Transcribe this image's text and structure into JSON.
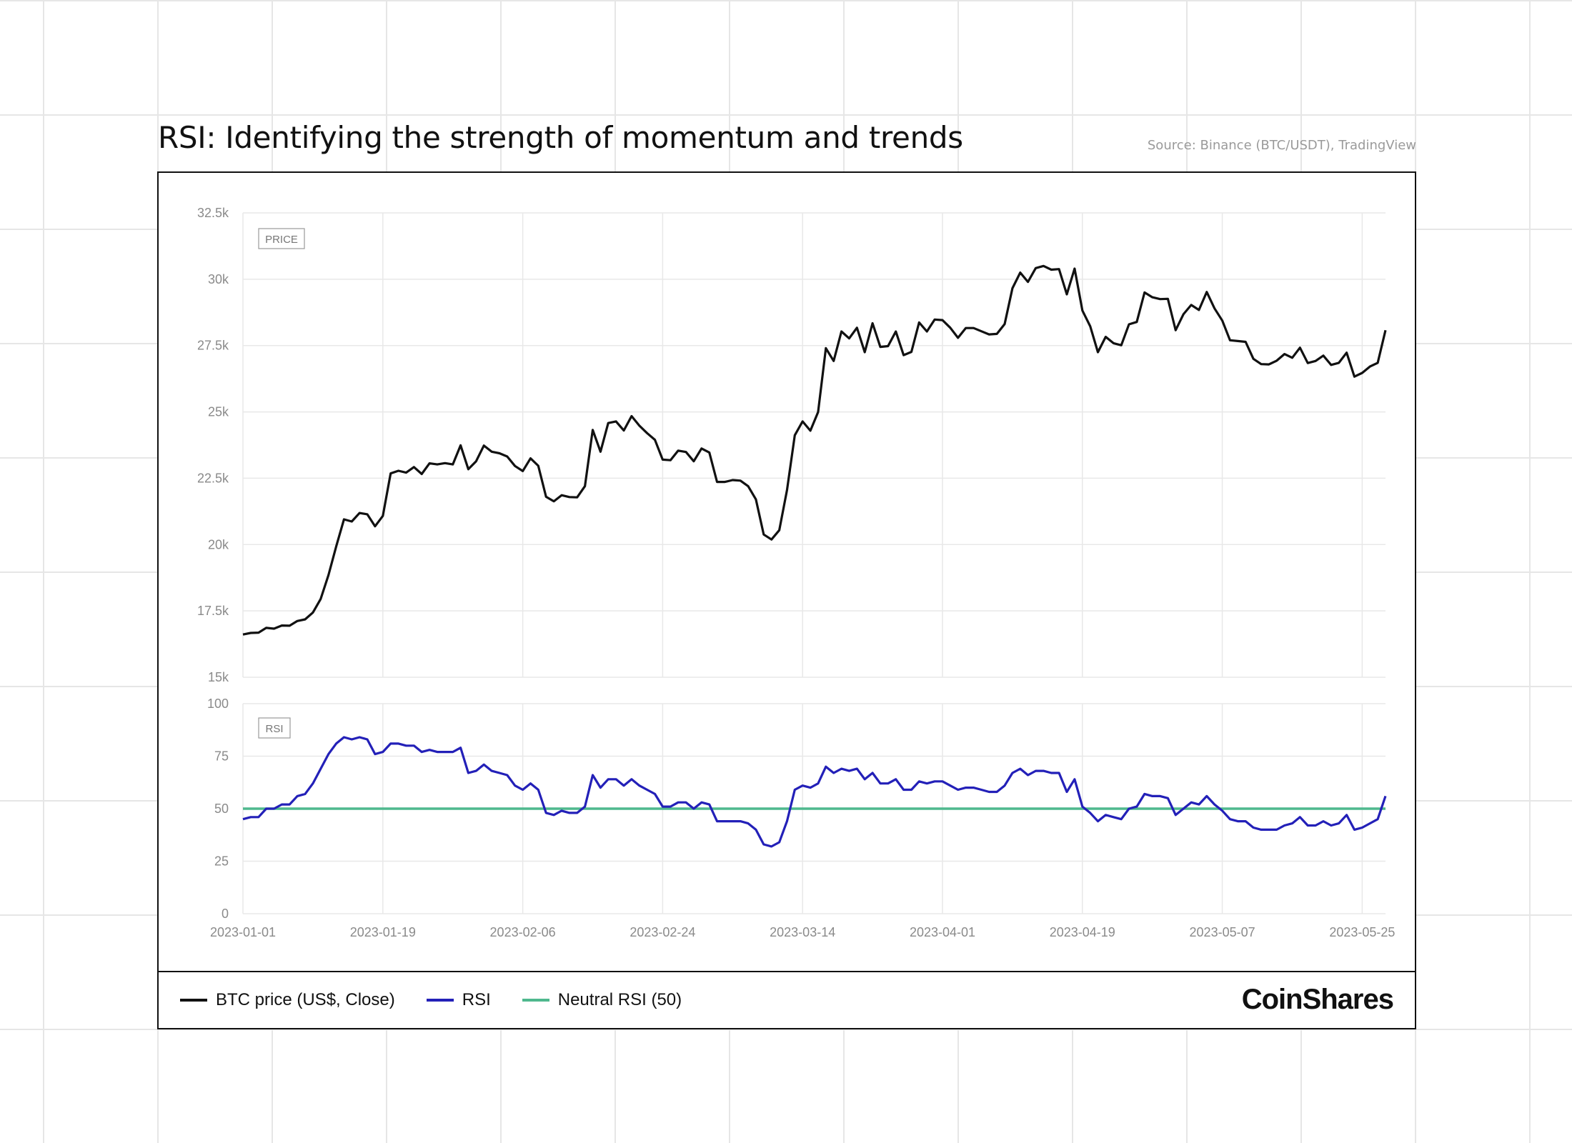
{
  "header": {
    "title": "RSI: Identifying the strength of momentum and trends",
    "source": "Source: Binance (BTC/USDT), TradingView"
  },
  "legend": {
    "items": [
      {
        "label": "BTC price (US$, Close)",
        "color": "#111111"
      },
      {
        "label": "RSI",
        "color": "#2320b8"
      },
      {
        "label": "Neutral RSI (50)",
        "color": "#4fb88e"
      }
    ]
  },
  "brand": {
    "logo": "CoinShares"
  },
  "chart_data": [
    {
      "type": "line",
      "panel_tag": "PRICE",
      "x_tick_labels": [
        "2023-01-01",
        "2023-01-19",
        "2023-02-06",
        "2023-02-24",
        "2023-03-14",
        "2023-04-01",
        "2023-04-19",
        "2023-05-07",
        "2023-05-25"
      ],
      "y_tick_labels": [
        "15k",
        "17.5k",
        "20k",
        "22.5k",
        "25k",
        "27.5k",
        "30k",
        "32.5k"
      ],
      "ylim": [
        15000,
        32500
      ],
      "grid": true,
      "series": [
        {
          "name": "BTC price (US$, Close)",
          "color": "#111111",
          "start_date": "2023-01-01",
          "values": [
            16610,
            16670,
            16680,
            16860,
            16830,
            16950,
            16940,
            17120,
            17180,
            17440,
            17950,
            18850,
            19930,
            20950,
            20870,
            21190,
            21140,
            20690,
            21080,
            22680,
            22780,
            22710,
            22920,
            22660,
            23060,
            23020,
            23070,
            23020,
            23740,
            22840,
            23140,
            23730,
            23500,
            23440,
            23320,
            22960,
            22770,
            23250,
            22970,
            21800,
            21630,
            21860,
            21790,
            21780,
            22200,
            24320,
            23500,
            24580,
            24640,
            24300,
            24840,
            24480,
            24200,
            23950,
            23200,
            23180,
            23540,
            23490,
            23140,
            23620,
            23470,
            22360,
            22360,
            22430,
            22410,
            22200,
            21700,
            20380,
            20190,
            20540,
            22050,
            24120,
            24640,
            24290,
            24990,
            27400,
            26920,
            28030,
            27770,
            28170,
            27250,
            28340,
            27450,
            27480,
            28030,
            27140,
            27260,
            28370,
            28030,
            28480,
            28460,
            28170,
            27790,
            28160,
            28160,
            28040,
            27920,
            27940,
            28310,
            29660,
            30250,
            29900,
            30420,
            30500,
            30360,
            30380,
            29430,
            30400,
            28820,
            28230,
            27250,
            27830,
            27590,
            27510,
            28300,
            28390,
            29500,
            29320,
            29250,
            29260,
            28080,
            28680,
            29030,
            28840,
            29520,
            28900,
            28440,
            27700,
            27670,
            27640,
            27000,
            26800,
            26790,
            26930,
            27180,
            27040,
            27420,
            26840,
            26920,
            27120,
            26770,
            26850,
            27230,
            26330,
            26470,
            26710,
            26850,
            28080
          ]
        }
      ]
    },
    {
      "type": "line",
      "panel_tag": "RSI",
      "x_tick_labels": [
        "2023-01-01",
        "2023-01-19",
        "2023-02-06",
        "2023-02-24",
        "2023-03-14",
        "2023-04-01",
        "2023-04-19",
        "2023-05-07",
        "2023-05-25"
      ],
      "y_tick_labels": [
        "0",
        "25",
        "50",
        "75",
        "100"
      ],
      "ylim": [
        0,
        100
      ],
      "grid": true,
      "series": [
        {
          "name": "RSI",
          "color": "#2320b8",
          "start_date": "2023-01-01",
          "values": [
            45,
            46,
            46,
            50,
            50,
            52,
            52,
            56,
            57,
            62,
            69,
            76,
            81,
            84,
            83,
            84,
            83,
            76,
            77,
            81,
            81,
            80,
            80,
            77,
            78,
            77,
            77,
            77,
            79,
            67,
            68,
            71,
            68,
            67,
            66,
            61,
            59,
            62,
            59,
            48,
            47,
            49,
            48,
            48,
            51,
            66,
            60,
            64,
            64,
            61,
            64,
            61,
            59,
            57,
            51,
            51,
            53,
            53,
            50,
            53,
            52,
            44,
            44,
            44,
            44,
            43,
            40,
            33,
            32,
            34,
            44,
            59,
            61,
            60,
            62,
            70,
            67,
            69,
            68,
            69,
            64,
            67,
            62,
            62,
            64,
            59,
            59,
            63,
            62,
            63,
            63,
            61,
            59,
            60,
            60,
            59,
            58,
            58,
            61,
            67,
            69,
            66,
            68,
            68,
            67,
            67,
            58,
            64,
            51,
            48,
            44,
            47,
            46,
            45,
            50,
            51,
            57,
            56,
            56,
            55,
            47,
            50,
            53,
            52,
            56,
            52,
            49,
            45,
            44,
            44,
            41,
            40,
            40,
            40,
            42,
            43,
            46,
            42,
            42,
            44,
            42,
            43,
            47,
            40,
            41,
            43,
            45,
            56
          ]
        },
        {
          "name": "Neutral RSI (50)",
          "color": "#4fb88e",
          "values": [
            50
          ]
        }
      ]
    }
  ]
}
